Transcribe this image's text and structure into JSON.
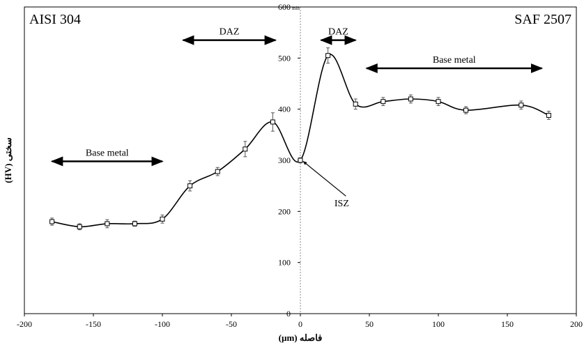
{
  "chart_data": {
    "type": "line",
    "xlabel": "فاصله (µm)",
    "ylabel": "سختی (HV)",
    "xlim": [
      -200,
      200
    ],
    "ylim": [
      0,
      600
    ],
    "xticks": [
      -200,
      -150,
      -100,
      -50,
      0,
      50,
      100,
      150,
      200
    ],
    "yticks": [
      0,
      100,
      200,
      300,
      400,
      500,
      600
    ],
    "ytick_labels": [
      "0",
      "100",
      "200",
      "300",
      "400",
      "500",
      "600"
    ],
    "y_top_suffix": "min",
    "series": [
      {
        "x": [
          -180,
          -160,
          -140,
          -120,
          -100,
          -80,
          -60,
          -40,
          -20,
          0,
          20,
          40,
          60,
          80,
          100,
          120,
          160,
          180
        ],
        "y": [
          180,
          170,
          176,
          176,
          185,
          250,
          278,
          322,
          375,
          300,
          505,
          410,
          415,
          420,
          415,
          398,
          408,
          388
        ],
        "err": [
          7,
          6,
          8,
          5,
          8,
          10,
          8,
          15,
          18,
          5,
          15,
          10,
          8,
          8,
          8,
          7,
          8,
          8
        ]
      }
    ],
    "left_label": "AISI 304",
    "right_label": "SAF 2507",
    "annotations": [
      {
        "text": "DAZ",
        "x1": -85,
        "x2": -18,
        "y": 535
      },
      {
        "text": "DAZ",
        "x1": 15,
        "x2": 40,
        "y": 535
      },
      {
        "text": "Base metal",
        "x1": -180,
        "x2": -100,
        "y": 298
      },
      {
        "text": "Base metal",
        "x1": 48,
        "x2": 175,
        "y": 480
      }
    ],
    "pointer": {
      "text": "ISZ",
      "label_x": 30,
      "label_y": 210,
      "from_x": 33,
      "from_y": 230,
      "to_x": 2,
      "to_y": 298
    },
    "divider_x": 0
  }
}
